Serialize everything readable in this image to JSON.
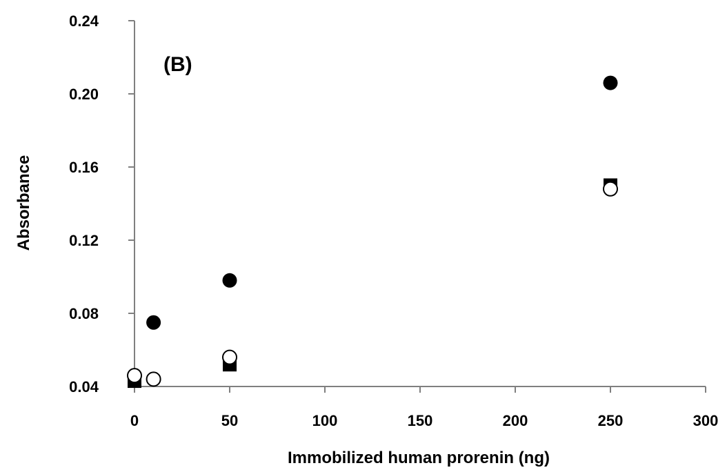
{
  "chart_data": {
    "type": "scatter",
    "title": "",
    "annotation": "(B)",
    "xlabel": "Immobilized human prorenin (ng)",
    "ylabel": "Absorbance",
    "xlim": [
      0,
      300
    ],
    "ylim": [
      0.04,
      0.24
    ],
    "xticks": [
      0,
      50,
      100,
      150,
      200,
      250,
      300
    ],
    "xtick_labels": [
      "0",
      "50",
      "100",
      "150",
      "200",
      "250",
      "300"
    ],
    "yticks": [
      0.04,
      0.08,
      0.12,
      0.16,
      0.2,
      0.24
    ],
    "ytick_labels": [
      "0.04",
      "0.08",
      "0.12",
      "0.16",
      "0.20",
      "0.24"
    ],
    "grid": false,
    "legend": "none",
    "series": [
      {
        "marker": "square-filled",
        "color": "#000000",
        "x": [
          0,
          50,
          250
        ],
        "y": [
          0.043,
          0.052,
          0.15
        ]
      },
      {
        "marker": "circle-filled",
        "color": "#000000",
        "x": [
          10,
          50,
          250
        ],
        "y": [
          0.075,
          0.098,
          0.206
        ]
      },
      {
        "marker": "circle-open",
        "color": "#000000",
        "x": [
          0,
          10,
          50,
          250
        ],
        "y": [
          0.046,
          0.044,
          0.056,
          0.148
        ]
      }
    ]
  }
}
